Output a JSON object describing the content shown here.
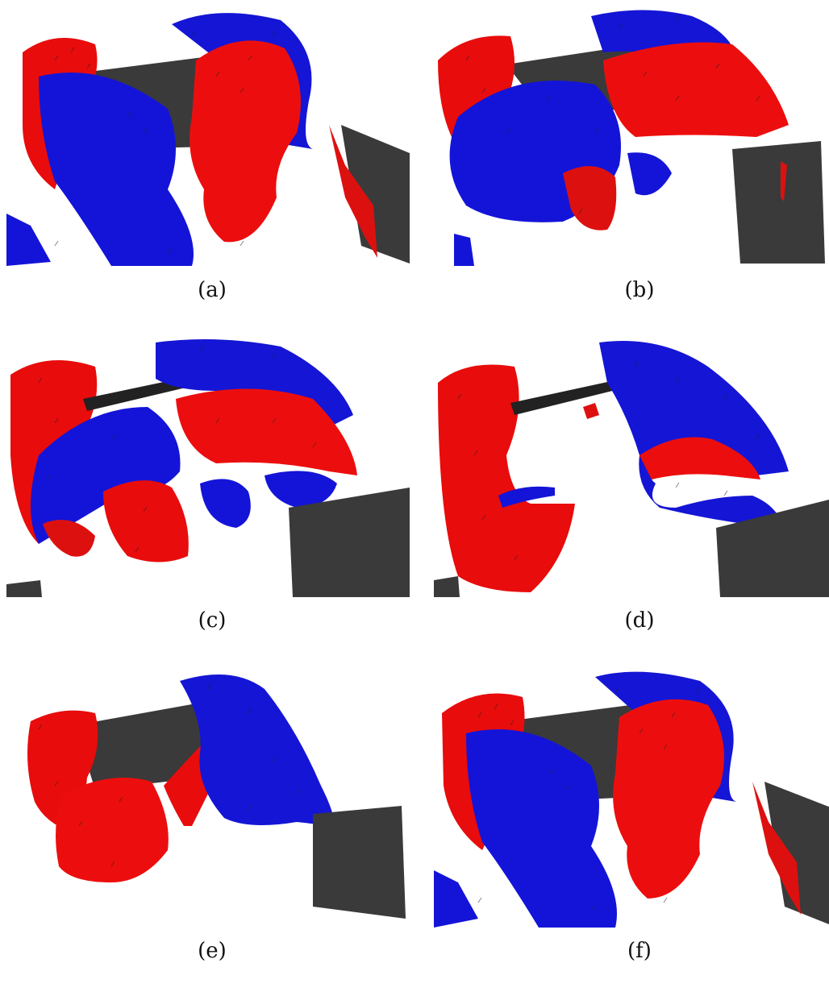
{
  "figure": {
    "panels": [
      {
        "id": "a",
        "caption": "(a)"
      },
      {
        "id": "b",
        "caption": "(b)"
      },
      {
        "id": "c",
        "caption": "(c)"
      },
      {
        "id": "d",
        "caption": "(d)"
      },
      {
        "id": "e",
        "caption": "(e)"
      },
      {
        "id": "f",
        "caption": "(f)"
      }
    ],
    "colors": {
      "positive_isosurface": "#ee0a0a",
      "negative_isosurface": "#1010dd",
      "wing_surface": "#3a3a3a",
      "background": "#ffffff"
    }
  }
}
